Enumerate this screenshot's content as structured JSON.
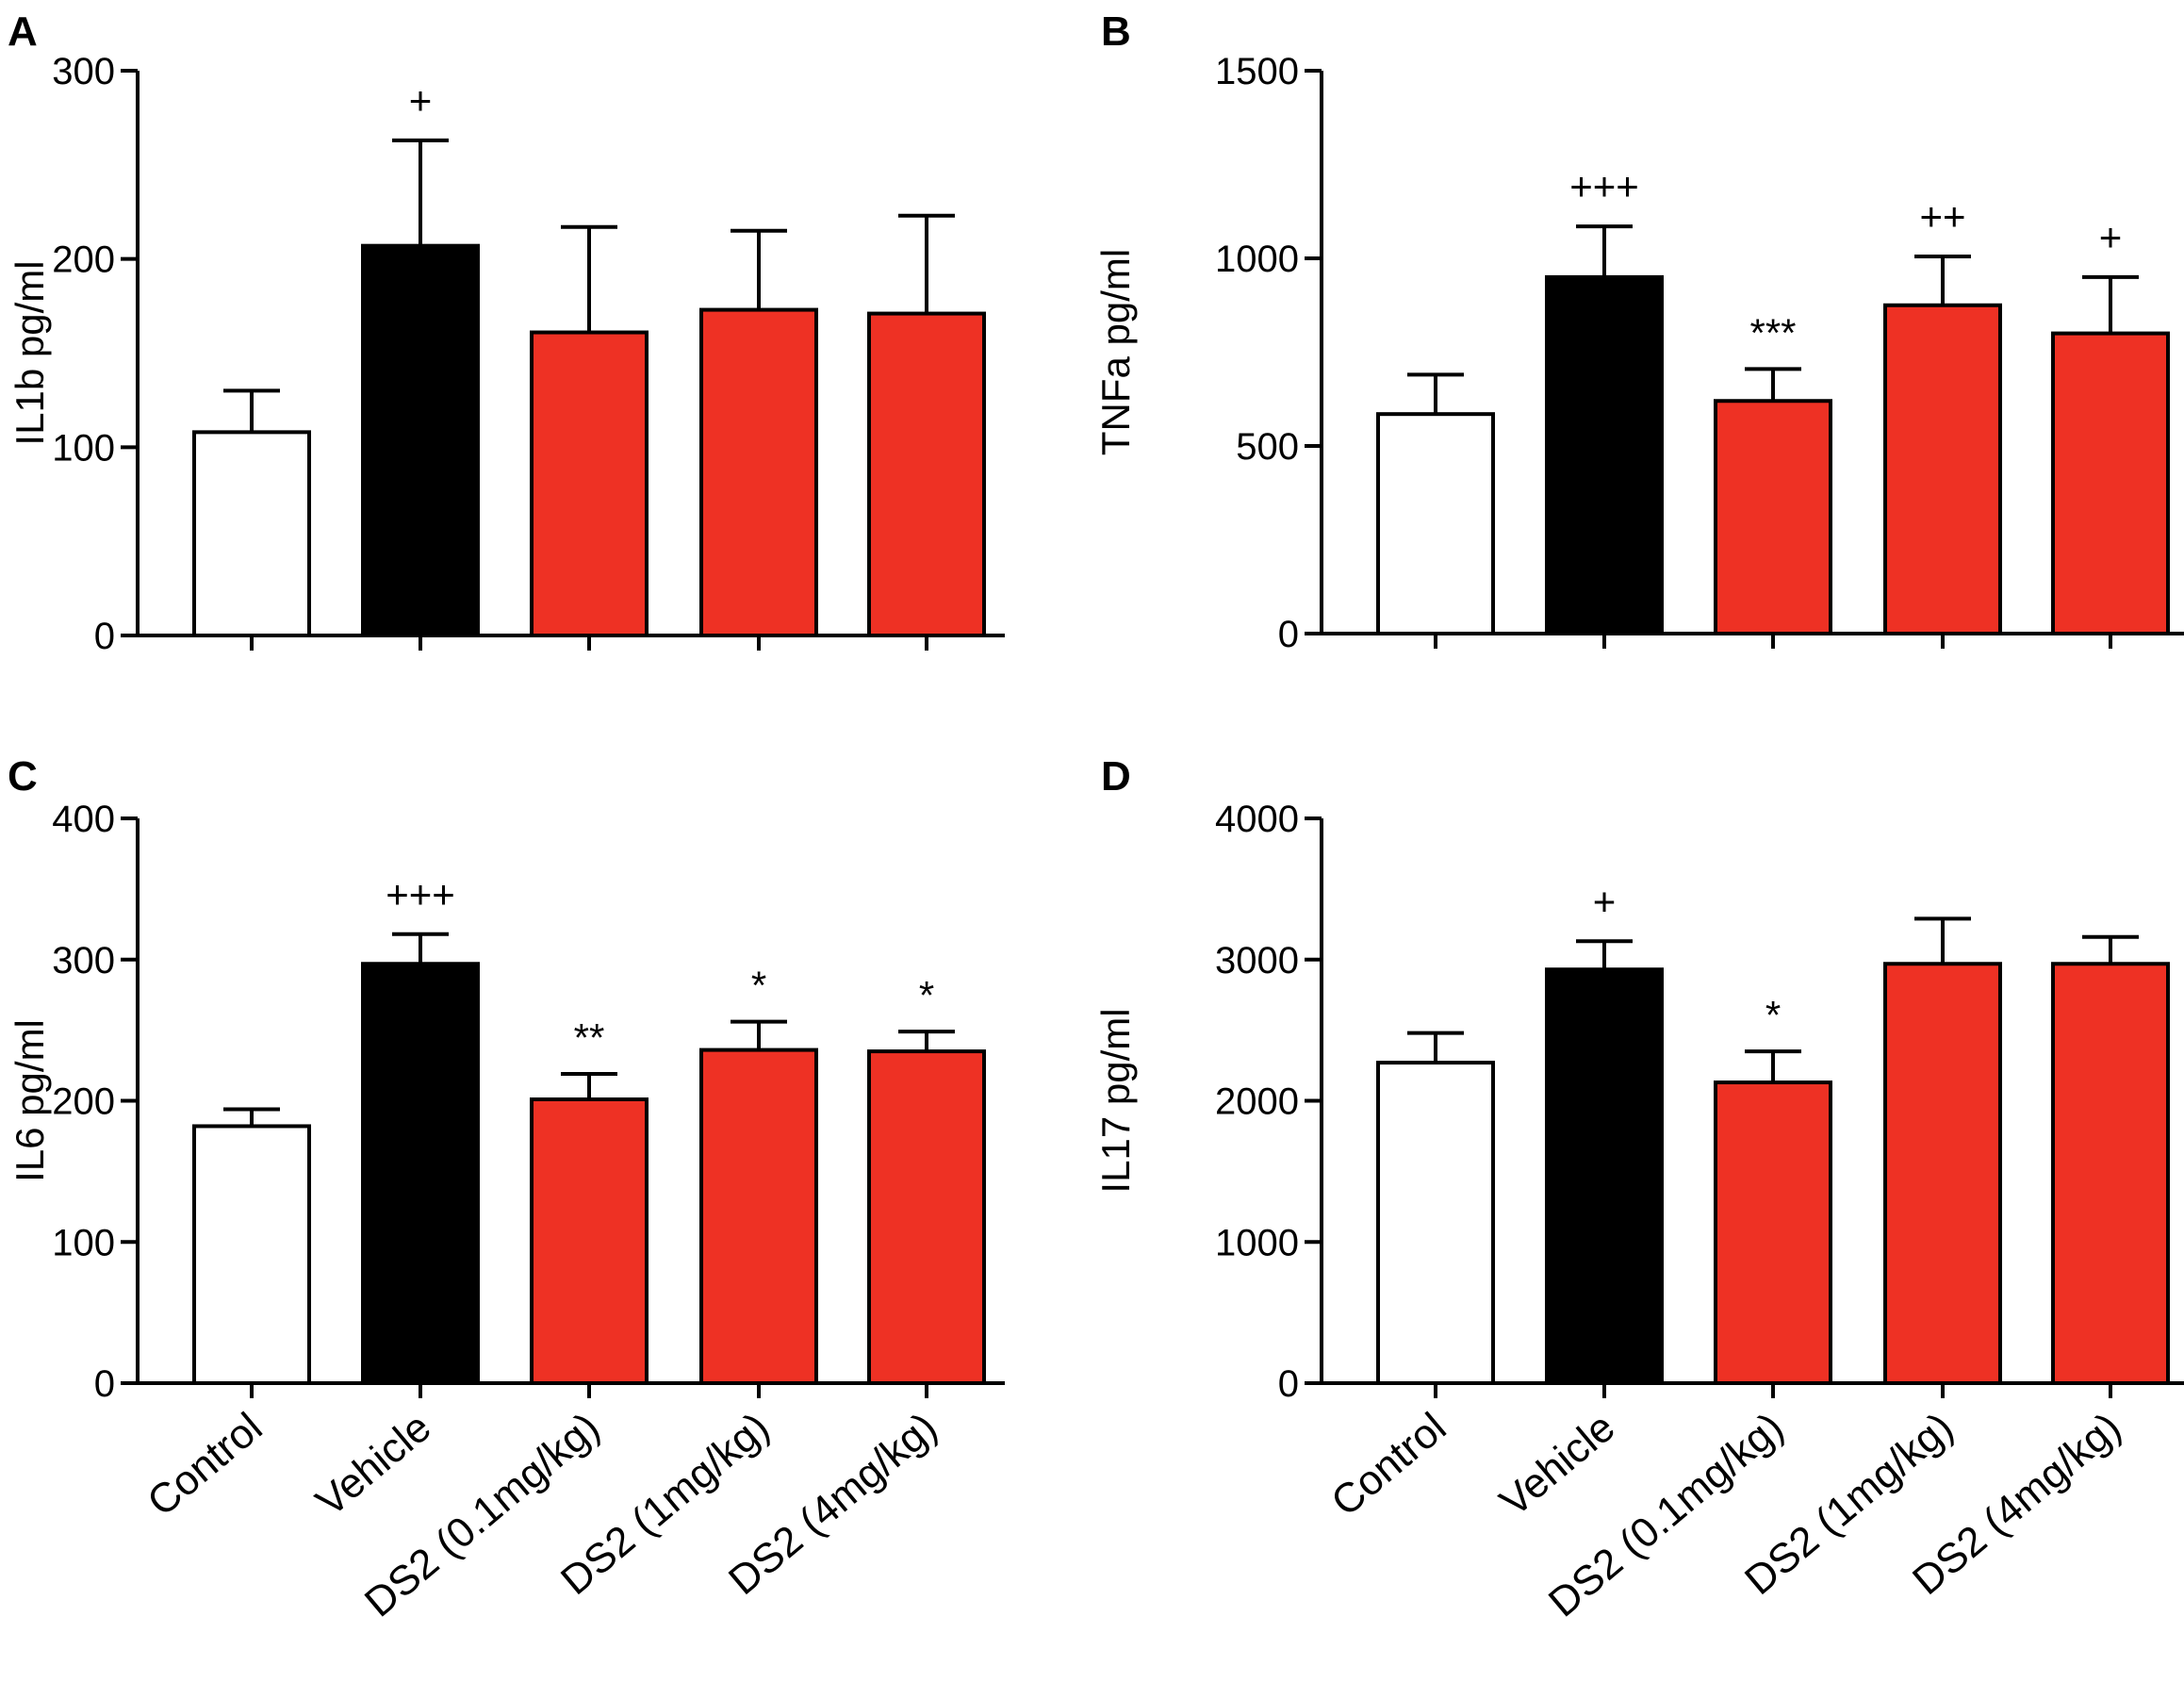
{
  "colors": {
    "control": "#ffffff",
    "vehicle": "#000000",
    "ds2": "#ee3124"
  },
  "chart_data": [
    {
      "type": "bar",
      "panel": "A",
      "ylabel": "IL1b pg/ml",
      "ylim": [
        0,
        300
      ],
      "yticks": [
        0,
        100,
        200,
        300
      ],
      "categories": [
        "Control",
        "Vehicle",
        "DS2 (0.1mg/kg)",
        "DS2 (1mg/kg)",
        "DS2 (4mg/kg)"
      ],
      "values": [
        108,
        207,
        161,
        173,
        171
      ],
      "errors": [
        22,
        56,
        56,
        42,
        52
      ],
      "significance": [
        "",
        "+",
        "",
        "",
        ""
      ],
      "bar_colors": [
        "control",
        "vehicle",
        "ds2",
        "ds2",
        "ds2"
      ],
      "show_category_labels": false
    },
    {
      "type": "bar",
      "panel": "B",
      "ylabel": "TNFa pg/ml",
      "ylim": [
        0,
        1500
      ],
      "yticks": [
        0,
        500,
        1000,
        1500
      ],
      "categories": [
        "Control",
        "Vehicle",
        "DS2 (0.1mg/kg)",
        "DS2 (1mg/kg)",
        "DS2 (4mg/kg)"
      ],
      "values": [
        585,
        950,
        620,
        875,
        800
      ],
      "errors": [
        105,
        135,
        85,
        130,
        150
      ],
      "significance": [
        "",
        "+++",
        "***",
        "++",
        "+"
      ],
      "bar_colors": [
        "control",
        "vehicle",
        "ds2",
        "ds2",
        "ds2"
      ],
      "show_category_labels": false
    },
    {
      "type": "bar",
      "panel": "C",
      "ylabel": "IL6 pg/ml",
      "ylim": [
        0,
        400
      ],
      "yticks": [
        0,
        100,
        200,
        300,
        400
      ],
      "categories": [
        "Control",
        "Vehicle",
        "DS2 (0.1mg/kg)",
        "DS2 (1mg/kg)",
        "DS2 (4mg/kg)"
      ],
      "values": [
        182,
        297,
        201,
        236,
        235
      ],
      "errors": [
        12,
        21,
        18,
        20,
        14
      ],
      "significance": [
        "",
        "+++",
        "**",
        "*",
        "*"
      ],
      "bar_colors": [
        "control",
        "vehicle",
        "ds2",
        "ds2",
        "ds2"
      ],
      "show_category_labels": true
    },
    {
      "type": "bar",
      "panel": "D",
      "ylabel": "IL17 pg/ml",
      "ylim": [
        0,
        4000
      ],
      "yticks": [
        0,
        1000,
        2000,
        3000,
        4000
      ],
      "categories": [
        "Control",
        "Vehicle",
        "DS2 (0.1mg/kg)",
        "DS2 (1mg/kg)",
        "DS2 (4mg/kg)"
      ],
      "values": [
        2270,
        2930,
        2130,
        2970,
        2970
      ],
      "errors": [
        210,
        200,
        220,
        320,
        190
      ],
      "significance": [
        "",
        "+",
        "*",
        "",
        ""
      ],
      "bar_colors": [
        "control",
        "vehicle",
        "ds2",
        "ds2",
        "ds2"
      ],
      "show_category_labels": true
    }
  ]
}
